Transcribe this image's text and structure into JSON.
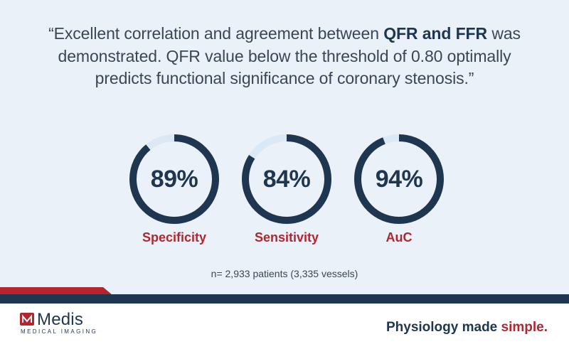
{
  "quote": {
    "line1_pre": "“Excellent correlation and agreement between ",
    "line1_bold": "QFR and FFR",
    "line1_post": " was",
    "line2": "demonstrated. QFR value below the threshold of 0.80 optimally",
    "line3": "predicts functional significance of coronary stenosis.”"
  },
  "metrics": [
    {
      "value_text": "89%",
      "value": 89,
      "label": "Specificity"
    },
    {
      "value_text": "84%",
      "value": 84,
      "label": "Sensitivity"
    },
    {
      "value_text": "94%",
      "value": 94,
      "label": "AuC"
    }
  ],
  "footnote": "n= 2,933 patients (3,335 vessels)",
  "logo": {
    "name": "Medis",
    "subtitle": "MEDICAL IMAGING"
  },
  "tagline": {
    "pre": "Physiology made ",
    "accent": "simple."
  },
  "colors": {
    "navy": "#1f3650",
    "red": "#b3252f",
    "background": "#eaf1f8",
    "ring_track": "#dbe8f5"
  }
}
